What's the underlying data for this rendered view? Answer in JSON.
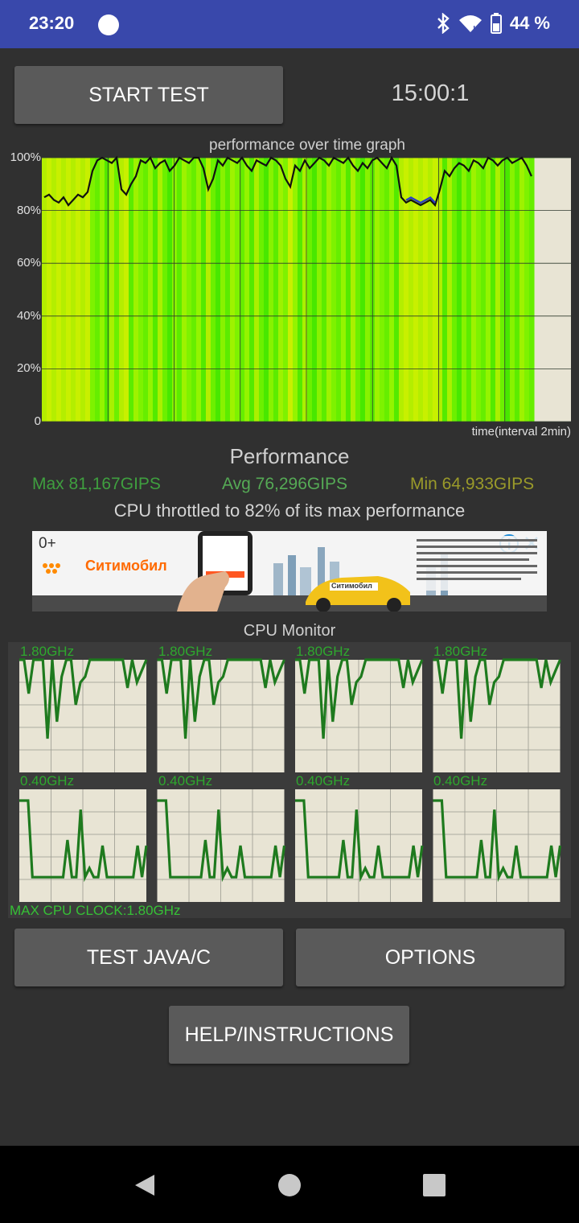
{
  "status_bar": {
    "time": "23:20",
    "battery": "44 %"
  },
  "controls": {
    "start_label": "START TEST",
    "timer": "15:00:1",
    "test_java_label": "TEST JAVA/C",
    "options_label": "OPTIONS",
    "help_label": "HELP/INSTRUCTIONS"
  },
  "chart_data": {
    "type": "area",
    "title": "performance over time graph",
    "xlabel": "time(interval 2min)",
    "ylabel": "",
    "y_ticks": [
      "100%",
      "80%",
      "60%",
      "40%",
      "20%",
      "0"
    ],
    "ylim": [
      0,
      100
    ],
    "grid": true,
    "series": [
      {
        "values": [
          85,
          86,
          84,
          83,
          85,
          82,
          84,
          86,
          85,
          87,
          95,
          99,
          100,
          99,
          98,
          100,
          88,
          86,
          90,
          93,
          99,
          98,
          100,
          96,
          98,
          99,
          95,
          97,
          100,
          99,
          98,
          100,
          100,
          96,
          88,
          92,
          99,
          97,
          100,
          99,
          98,
          100,
          97,
          95,
          99,
          98,
          97,
          100,
          99,
          97,
          92,
          89,
          97,
          95,
          99,
          96,
          98,
          100,
          99,
          97,
          100,
          99,
          98,
          100,
          97,
          95,
          98,
          96,
          99,
          100,
          98,
          96,
          100,
          97,
          85,
          83,
          84,
          83,
          82,
          83,
          84,
          82,
          88,
          95,
          93,
          96,
          98,
          97,
          95,
          99,
          98,
          96,
          100,
          99,
          97,
          99,
          100,
          98,
          99,
          100,
          97,
          93
        ]
      }
    ]
  },
  "performance": {
    "title": "Performance",
    "max": "Max 81,167GIPS",
    "avg": "Avg 76,296GIPS",
    "min": "Min 64,933GIPS",
    "throttle": "CPU throttled to 82% of its max performance"
  },
  "ad": {
    "badge": "0+",
    "brand": "Ситимобил",
    "car_text": "Ситимобил"
  },
  "cpu_monitor": {
    "title": "CPU Monitor",
    "cores": [
      {
        "freq": "1.80GHz",
        "levels": [
          1.0,
          1.0,
          0.7,
          1.0,
          1.0,
          1.0,
          0.3,
          1.0,
          0.45,
          0.85,
          1.0,
          1.0,
          0.6,
          0.8,
          0.85,
          1.0,
          1.0,
          1.0,
          1.0,
          1.0,
          1.0,
          1.0,
          1.0,
          0.75,
          1.0,
          0.8,
          0.9,
          1.0
        ]
      },
      {
        "freq": "1.80GHz",
        "levels": [
          1.0,
          1.0,
          0.7,
          1.0,
          1.0,
          1.0,
          0.3,
          1.0,
          0.45,
          0.85,
          1.0,
          1.0,
          0.6,
          0.8,
          0.85,
          1.0,
          1.0,
          1.0,
          1.0,
          1.0,
          1.0,
          1.0,
          1.0,
          0.75,
          1.0,
          0.8,
          0.9,
          1.0
        ]
      },
      {
        "freq": "1.80GHz",
        "levels": [
          1.0,
          1.0,
          0.7,
          1.0,
          1.0,
          1.0,
          0.3,
          1.0,
          0.45,
          0.85,
          1.0,
          1.0,
          0.6,
          0.8,
          0.85,
          1.0,
          1.0,
          1.0,
          1.0,
          1.0,
          1.0,
          1.0,
          1.0,
          0.75,
          1.0,
          0.8,
          0.9,
          1.0
        ]
      },
      {
        "freq": "1.80GHz",
        "levels": [
          1.0,
          1.0,
          0.7,
          1.0,
          1.0,
          1.0,
          0.3,
          1.0,
          0.45,
          0.85,
          1.0,
          1.0,
          0.6,
          0.8,
          0.85,
          1.0,
          1.0,
          1.0,
          1.0,
          1.0,
          1.0,
          1.0,
          1.0,
          0.75,
          1.0,
          0.8,
          0.9,
          1.0
        ]
      },
      {
        "freq": "0.40GHz",
        "levels": [
          0.9,
          0.9,
          0.9,
          0.22,
          0.22,
          0.22,
          0.22,
          0.22,
          0.22,
          0.22,
          0.22,
          0.55,
          0.22,
          0.22,
          0.82,
          0.22,
          0.3,
          0.22,
          0.22,
          0.5,
          0.22,
          0.22,
          0.22,
          0.22,
          0.22,
          0.22,
          0.22,
          0.5,
          0.22,
          0.5
        ]
      },
      {
        "freq": "0.40GHz",
        "levels": [
          0.9,
          0.9,
          0.9,
          0.22,
          0.22,
          0.22,
          0.22,
          0.22,
          0.22,
          0.22,
          0.22,
          0.55,
          0.22,
          0.22,
          0.82,
          0.22,
          0.3,
          0.22,
          0.22,
          0.5,
          0.22,
          0.22,
          0.22,
          0.22,
          0.22,
          0.22,
          0.22,
          0.5,
          0.22,
          0.5
        ]
      },
      {
        "freq": "0.40GHz",
        "levels": [
          0.9,
          0.9,
          0.9,
          0.22,
          0.22,
          0.22,
          0.22,
          0.22,
          0.22,
          0.22,
          0.22,
          0.55,
          0.22,
          0.22,
          0.82,
          0.22,
          0.3,
          0.22,
          0.22,
          0.5,
          0.22,
          0.22,
          0.22,
          0.22,
          0.22,
          0.22,
          0.22,
          0.5,
          0.22,
          0.5
        ]
      },
      {
        "freq": "0.40GHz",
        "levels": [
          0.9,
          0.9,
          0.9,
          0.22,
          0.22,
          0.22,
          0.22,
          0.22,
          0.22,
          0.22,
          0.22,
          0.55,
          0.22,
          0.22,
          0.82,
          0.22,
          0.3,
          0.22,
          0.22,
          0.5,
          0.22,
          0.22,
          0.22,
          0.22,
          0.22,
          0.22,
          0.22,
          0.5,
          0.22,
          0.5
        ]
      }
    ],
    "max_clock": "MAX CPU CLOCK:1.80GHz"
  },
  "colors": {
    "status_bar": "#3948ab",
    "background": "#303030",
    "button": "#5a5a5a",
    "graph_bg": "#e8e4d4",
    "line_core": "#1e7a1e",
    "stat_max": "#3f9f3f",
    "stat_avg": "#55aa55",
    "stat_min": "#9a9a2a"
  }
}
